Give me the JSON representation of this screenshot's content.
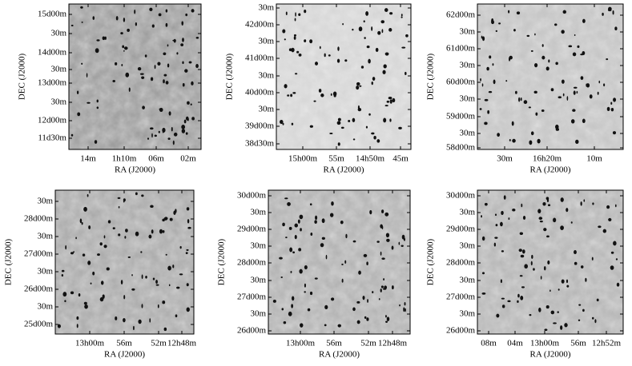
{
  "panels": [
    {
      "yticks": [
        "15d00m",
        "30m",
        "14d00m",
        "30m",
        "13d00m",
        "30m",
        "12d00m",
        "11d30m"
      ],
      "xticks": [
        "14m",
        "1h10m",
        "06m",
        "02m"
      ],
      "xlabel": "RA (J2000)",
      "ylabel": "DEC (J2000)"
    },
    {
      "yticks": [
        "30m",
        "42d00m",
        "30m",
        "41d00m",
        "30m",
        "40d00m",
        "30m",
        "39d00m",
        "38d30m"
      ],
      "xticks": [
        "15h00m",
        "55m",
        "14h50m",
        "45m"
      ],
      "xlabel": "RA (J2000)",
      "ylabel": "DEC (J2000)"
    },
    {
      "yticks": [
        "62d00m",
        "30m",
        "61d00m",
        "30m",
        "60d00m",
        "30m",
        "59d00m",
        "30m",
        "58d00m"
      ],
      "xticks": [
        "30m",
        "16h20m",
        "10m"
      ],
      "xlabel": "RA (J2000)",
      "ylabel": "DEC (J2000)"
    },
    {
      "yticks": [
        "30m",
        "28d00m",
        "30m",
        "27d00m",
        "30m",
        "26d00m",
        "30m",
        "25d00m"
      ],
      "xticks": [
        "13h00m",
        "56m",
        "52m",
        "12h48m"
      ],
      "xlabel": "RA (J2000)",
      "ylabel": "DEC (J2000)"
    },
    {
      "yticks": [
        "30d00m",
        "30m",
        "29d00m",
        "30m",
        "28d00m",
        "30m",
        "27d00m",
        "30m",
        "26d00m"
      ],
      "xticks": [
        "13h00m",
        "56m",
        "52m",
        "12h48m"
      ],
      "xlabel": "RA (J2000)",
      "ylabel": "DEC (J2000)"
    },
    {
      "yticks": [
        "30d00m",
        "30m",
        "29d00m",
        "30m",
        "28d00m",
        "30m",
        "27d00m",
        "30m",
        "26d00m"
      ],
      "xticks": [
        "08m",
        "04m",
        "13h00m",
        "56m",
        "12h52m"
      ],
      "xlabel": "RA (J2000)",
      "ylabel": "DEC (J2000)"
    }
  ]
}
